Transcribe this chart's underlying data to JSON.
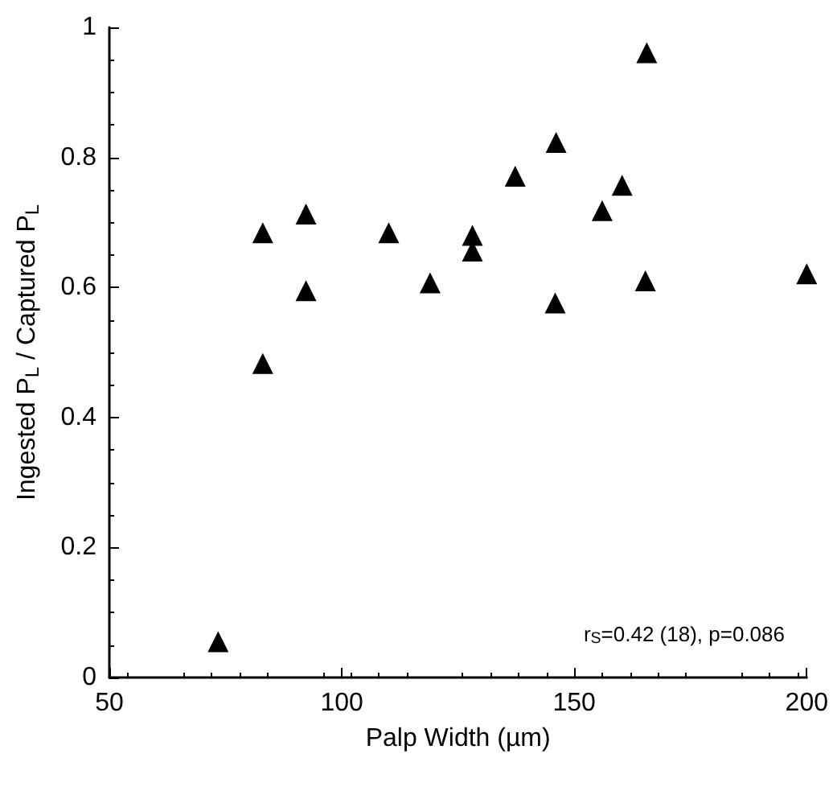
{
  "chart_data": {
    "type": "scatter",
    "xlabel": "Palp Width (µm)",
    "ylabel": "Ingested P$_{L}$ / Captured P$_{L}$",
    "annotations": [
      "r$_{S}$=0.42 (18), p=0.086"
    ],
    "marker": "triangle",
    "xlim": [
      50,
      200
    ],
    "xticks": [
      50,
      100,
      150,
      200
    ],
    "ylim": [
      0,
      1
    ],
    "yticks": [
      0,
      0.2,
      0.4,
      0.6,
      0.8,
      1
    ],
    "series": [
      {
        "color": "#000000",
        "x": [
          73.4,
          83,
          83,
          92.3,
          92.3,
          110.1,
          119,
          128.1,
          128.1,
          137.3,
          146.1,
          145.9,
          156,
          160.3,
          165.6,
          165.3,
          200
        ],
        "values": [
          0.055,
          0.684,
          0.483,
          0.713,
          0.595,
          0.684,
          0.607,
          0.68,
          0.656,
          0.771,
          0.823,
          0.576,
          0.718,
          0.757,
          0.961,
          0.61,
          0.621
        ]
      }
    ]
  }
}
